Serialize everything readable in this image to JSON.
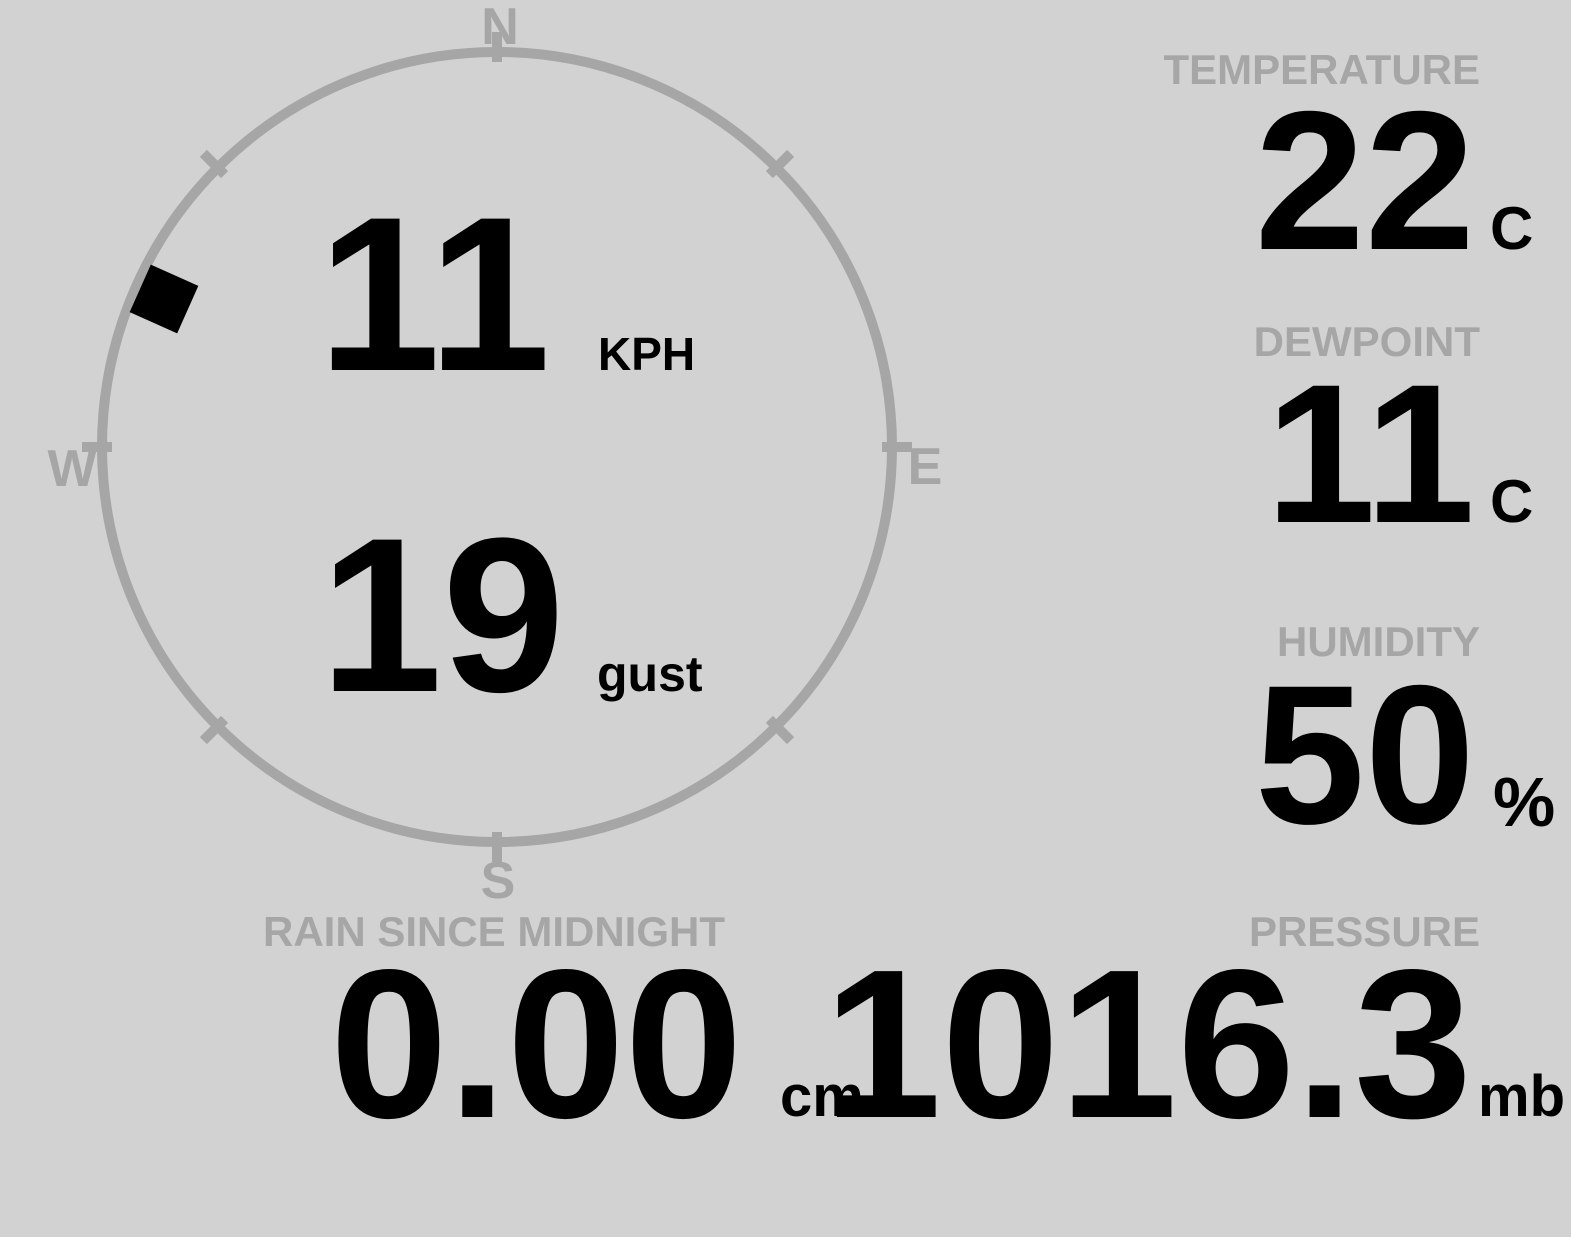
{
  "colors": {
    "background": "#d2d2d2",
    "muted": "#a6a6a6",
    "ink": "#000000"
  },
  "compass": {
    "north": "N",
    "east": "E",
    "south": "S",
    "west": "W"
  },
  "wind": {
    "speed": "11",
    "speed_unit": "KPH",
    "gust": "19",
    "gust_label": "gust",
    "direction_deg": 294
  },
  "metrics": {
    "temperature": {
      "label": "TEMPERATURE",
      "value": "22",
      "unit": "C"
    },
    "dewpoint": {
      "label": "DEWPOINT",
      "value": "11",
      "unit": "C"
    },
    "humidity": {
      "label": "HUMIDITY",
      "value": "50",
      "unit": "%"
    },
    "rain": {
      "label": "RAIN SINCE MIDNIGHT",
      "value": "0.00",
      "unit": "cm"
    },
    "pressure": {
      "label": "PRESSURE",
      "value": "1016.3",
      "unit": "mb"
    }
  }
}
